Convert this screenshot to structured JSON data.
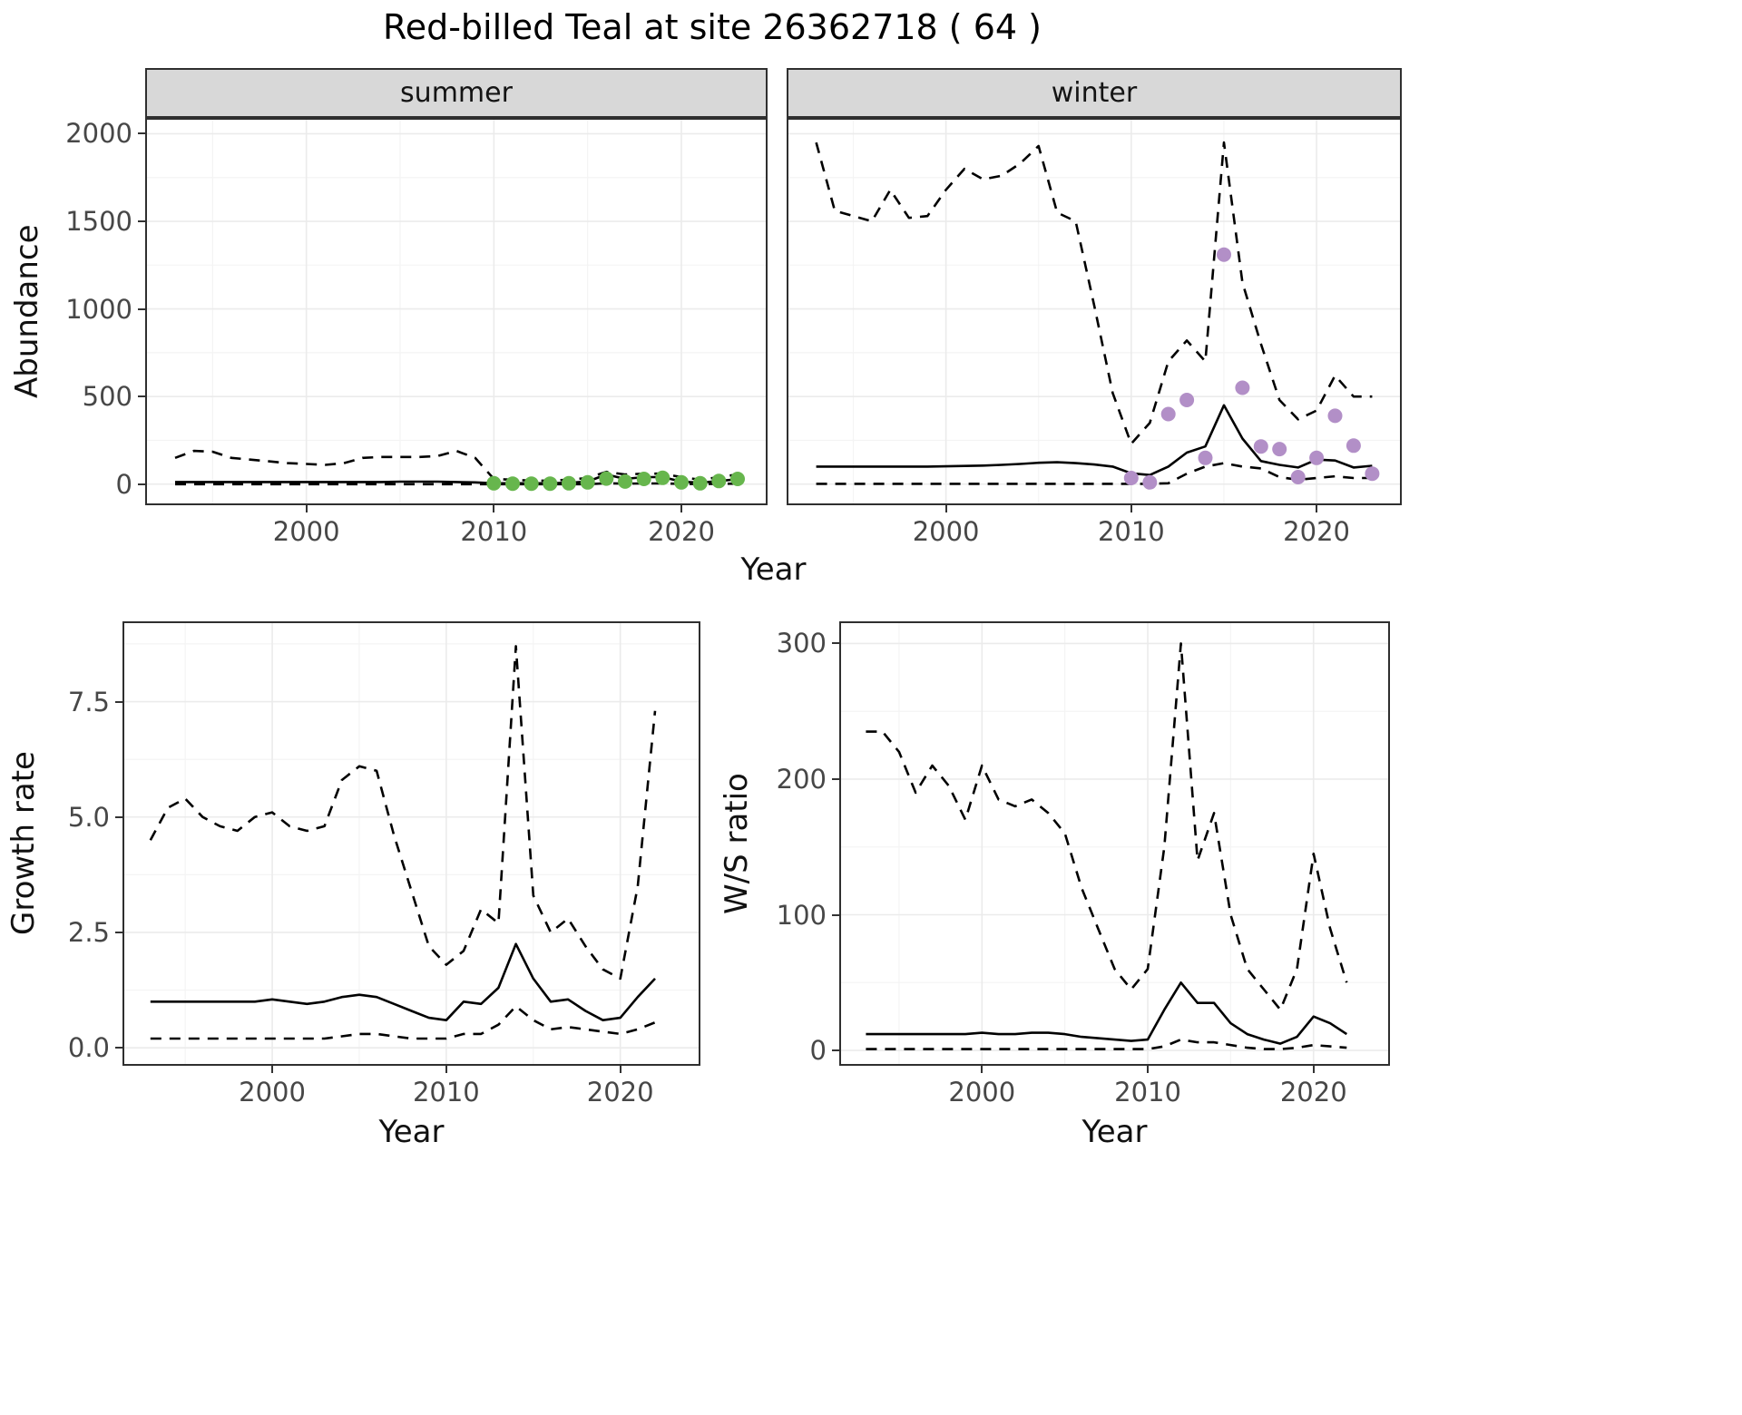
{
  "title": "Red-billed Teal at site 26362718 ( 64 )",
  "top_figure": {
    "xlabel": "Year",
    "ylabel": "Abundance"
  },
  "colors": {
    "line": "#000000",
    "grid_major": "#ebebeb",
    "grid_minor": "#f4f4f4",
    "strip_bg": "#d8d8d8",
    "panel_border": "#2f2f2f",
    "summer_points": "#67b64d",
    "winter_points": "#b28fc7"
  },
  "chart_data": [
    {
      "id": "abundance-summer",
      "type": "line",
      "facet_label": "summer",
      "xlabel": "Year",
      "ylabel": "Abundance",
      "xlim": [
        1991.5,
        2024.5
      ],
      "ylim": [
        -110,
        2080
      ],
      "x_ticks": [
        2000,
        2010,
        2020
      ],
      "x_tick_labels": [
        "2000",
        "2010",
        "2020"
      ],
      "y_ticks": [
        0,
        500,
        1000,
        1500,
        2000
      ],
      "y_tick_labels": [
        "0",
        "500",
        "1000",
        "1500",
        "2000"
      ],
      "x": [
        1993,
        1994,
        1995,
        1996,
        1997,
        1998,
        1999,
        2000,
        2001,
        2002,
        2003,
        2004,
        2005,
        2006,
        2007,
        2008,
        2009,
        2010,
        2011,
        2012,
        2013,
        2014,
        2015,
        2016,
        2017,
        2018,
        2019,
        2020,
        2021,
        2022,
        2023
      ],
      "series": [
        {
          "name": "upper_95ci",
          "style": "dashed",
          "values": [
            150,
            190,
            185,
            150,
            140,
            130,
            120,
            115,
            110,
            120,
            150,
            155,
            155,
            155,
            160,
            190,
            150,
            30,
            25,
            20,
            20,
            25,
            35,
            70,
            55,
            60,
            60,
            40,
            25,
            40,
            55
          ]
        },
        {
          "name": "modelled_median",
          "style": "solid",
          "values": [
            12,
            12,
            12,
            12,
            12,
            12,
            12,
            12,
            12,
            12,
            12,
            12,
            14,
            14,
            14,
            12,
            10,
            5,
            5,
            5,
            5,
            8,
            15,
            55,
            30,
            40,
            40,
            15,
            8,
            18,
            28
          ]
        },
        {
          "name": "lower_95ci",
          "style": "dashed",
          "values": [
            0,
            0,
            0,
            0,
            0,
            0,
            0,
            0,
            0,
            0,
            0,
            0,
            0,
            0,
            0,
            0,
            0,
            0,
            0,
            0,
            0,
            0,
            0,
            5,
            3,
            4,
            4,
            2,
            0,
            2,
            3
          ]
        }
      ],
      "points": {
        "name": "observed-counts-summer",
        "color": "#67b64d",
        "x": [
          2010,
          2011,
          2012,
          2013,
          2014,
          2015,
          2016,
          2017,
          2018,
          2019,
          2020,
          2021,
          2022,
          2023
        ],
        "y": [
          5,
          3,
          3,
          3,
          5,
          10,
          32,
          15,
          30,
          36,
          10,
          5,
          18,
          30
        ]
      }
    },
    {
      "id": "abundance-winter",
      "type": "line",
      "facet_label": "winter",
      "xlabel": "Year",
      "ylabel": "Abundance",
      "xlim": [
        1991.5,
        2024.5
      ],
      "ylim": [
        -110,
        2080
      ],
      "x_ticks": [
        2000,
        2010,
        2020
      ],
      "x_tick_labels": [
        "2000",
        "2010",
        "2020"
      ],
      "y_ticks": [
        0,
        500,
        1000,
        1500,
        2000
      ],
      "y_tick_labels": [
        "0",
        "500",
        "1000",
        "1500",
        "2000"
      ],
      "x": [
        1993,
        1994,
        1995,
        1996,
        1997,
        1998,
        1999,
        2000,
        2001,
        2002,
        2003,
        2004,
        2005,
        2006,
        2007,
        2008,
        2009,
        2010,
        2011,
        2012,
        2013,
        2014,
        2015,
        2016,
        2017,
        2018,
        2019,
        2020,
        2021,
        2022,
        2023
      ],
      "series": [
        {
          "name": "upper_95ci",
          "style": "dashed",
          "values": [
            1950,
            1560,
            1530,
            1500,
            1680,
            1520,
            1530,
            1680,
            1800,
            1740,
            1760,
            1830,
            1930,
            1550,
            1500,
            1020,
            520,
            230,
            350,
            700,
            820,
            700,
            1950,
            1150,
            800,
            480,
            370,
            420,
            620,
            500,
            500
          ]
        },
        {
          "name": "modelled_median",
          "style": "solid",
          "values": [
            100,
            100,
            100,
            100,
            100,
            100,
            100,
            102,
            104,
            106,
            110,
            115,
            122,
            125,
            120,
            112,
            100,
            62,
            52,
            100,
            180,
            215,
            450,
            260,
            132,
            110,
            95,
            140,
            135,
            95,
            105
          ]
        },
        {
          "name": "lower_95ci",
          "style": "dashed",
          "values": [
            2,
            2,
            2,
            2,
            2,
            2,
            2,
            2,
            2,
            2,
            2,
            2,
            2,
            2,
            2,
            2,
            2,
            2,
            2,
            5,
            60,
            100,
            120,
            100,
            90,
            40,
            25,
            35,
            45,
            35,
            35
          ]
        }
      ],
      "points": {
        "name": "observed-counts-winter",
        "color": "#b28fc7",
        "x": [
          2010,
          2011,
          2012,
          2013,
          2014,
          2015,
          2016,
          2017,
          2018,
          2019,
          2020,
          2021,
          2022,
          2023
        ],
        "y": [
          35,
          10,
          400,
          480,
          150,
          1310,
          550,
          215,
          200,
          40,
          150,
          390,
          220,
          60
        ]
      }
    },
    {
      "id": "growth-rate",
      "type": "line",
      "facet_label": "",
      "xlabel": "Year",
      "ylabel": "Growth rate",
      "xlim": [
        1991.5,
        2024.5
      ],
      "ylim": [
        -0.35,
        9.2
      ],
      "x_ticks": [
        2000,
        2010,
        2020
      ],
      "x_tick_labels": [
        "2000",
        "2010",
        "2020"
      ],
      "y_ticks": [
        0,
        2.5,
        5,
        7.5
      ],
      "y_tick_labels": [
        "0.0",
        "2.5",
        "5.0",
        "7.5"
      ],
      "x": [
        1993,
        1994,
        1995,
        1996,
        1997,
        1998,
        1999,
        2000,
        2001,
        2002,
        2003,
        2004,
        2005,
        2006,
        2007,
        2008,
        2009,
        2010,
        2011,
        2012,
        2013,
        2014,
        2015,
        2016,
        2017,
        2018,
        2019,
        2020,
        2021,
        2022
      ],
      "series": [
        {
          "name": "upper_95ci",
          "style": "dashed",
          "values": [
            4.5,
            5.2,
            5.4,
            5.0,
            4.8,
            4.7,
            5.0,
            5.1,
            4.8,
            4.7,
            4.8,
            5.8,
            6.1,
            6.0,
            4.6,
            3.4,
            2.2,
            1.8,
            2.1,
            3.0,
            2.7,
            8.7,
            3.3,
            2.5,
            2.8,
            2.2,
            1.7,
            1.5,
            3.5,
            7.3
          ]
        },
        {
          "name": "modelled_median",
          "style": "solid",
          "values": [
            1.0,
            1.0,
            1.0,
            1.0,
            1.0,
            1.0,
            1.0,
            1.05,
            1.0,
            0.95,
            1.0,
            1.1,
            1.15,
            1.1,
            0.95,
            0.8,
            0.65,
            0.6,
            1.0,
            0.95,
            1.3,
            2.25,
            1.5,
            1.0,
            1.05,
            0.8,
            0.6,
            0.65,
            1.1,
            1.5
          ]
        },
        {
          "name": "lower_95ci",
          "style": "dashed",
          "values": [
            0.2,
            0.2,
            0.2,
            0.2,
            0.2,
            0.2,
            0.2,
            0.2,
            0.2,
            0.2,
            0.2,
            0.25,
            0.3,
            0.3,
            0.25,
            0.2,
            0.2,
            0.2,
            0.3,
            0.3,
            0.5,
            0.9,
            0.6,
            0.4,
            0.45,
            0.4,
            0.35,
            0.3,
            0.4,
            0.55
          ]
        }
      ]
    },
    {
      "id": "ws-ratio",
      "type": "line",
      "facet_label": "",
      "xlabel": "Year",
      "ylabel": "W/S ratio",
      "xlim": [
        1991.5,
        2024.5
      ],
      "ylim": [
        -10,
        315
      ],
      "x_ticks": [
        2000,
        2010,
        2020
      ],
      "x_tick_labels": [
        "2000",
        "2010",
        "2020"
      ],
      "y_ticks": [
        0,
        100,
        200,
        300
      ],
      "y_tick_labels": [
        "0",
        "100",
        "200",
        "300"
      ],
      "x": [
        1993,
        1994,
        1995,
        1996,
        1997,
        1998,
        1999,
        2000,
        2001,
        2002,
        2003,
        2004,
        2005,
        2006,
        2007,
        2008,
        2009,
        2010,
        2011,
        2012,
        2013,
        2014,
        2015,
        2016,
        2017,
        2018,
        2019,
        2020,
        2021,
        2022
      ],
      "series": [
        {
          "name": "upper_95ci",
          "style": "dashed",
          "values": [
            235,
            235,
            220,
            190,
            210,
            195,
            170,
            210,
            185,
            180,
            185,
            175,
            160,
            120,
            90,
            60,
            45,
            60,
            150,
            300,
            140,
            175,
            100,
            60,
            45,
            30,
            60,
            145,
            90,
            50
          ]
        },
        {
          "name": "modelled_median",
          "style": "solid",
          "values": [
            12,
            12,
            12,
            12,
            12,
            12,
            12,
            13,
            12,
            12,
            13,
            13,
            12,
            10,
            9,
            8,
            7,
            8,
            30,
            50,
            35,
            35,
            20,
            12,
            8,
            5,
            10,
            25,
            20,
            12
          ]
        },
        {
          "name": "lower_95ci",
          "style": "dashed",
          "values": [
            1,
            1,
            1,
            1,
            1,
            1,
            1,
            1,
            1,
            1,
            1,
            1,
            1,
            1,
            1,
            1,
            1,
            1,
            3,
            8,
            6,
            6,
            4,
            2,
            1,
            1,
            2,
            4,
            3,
            2
          ]
        }
      ]
    }
  ]
}
